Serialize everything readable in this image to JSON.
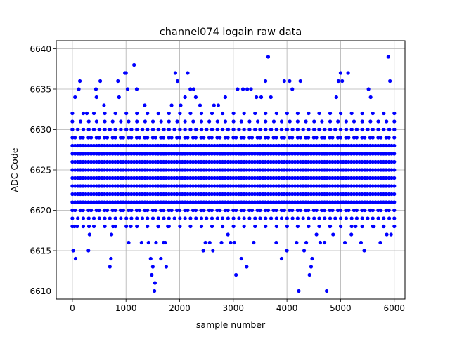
{
  "chart_data": {
    "type": "scatter",
    "title": "channel074 logain raw data",
    "xlabel": "sample number",
    "ylabel": "ADC Code",
    "xlim": [
      -300,
      6200
    ],
    "ylim": [
      6609,
      6641
    ],
    "xticks": [
      0,
      1000,
      2000,
      3000,
      4000,
      5000,
      6000
    ],
    "yticks": [
      6610,
      6615,
      6620,
      6625,
      6630,
      6635,
      6640
    ],
    "xtick_labels": [
      "0",
      "1000",
      "2000",
      "3000",
      "4000",
      "5000",
      "6000"
    ],
    "ytick_labels": [
      "6610",
      "6615",
      "6620",
      "6625",
      "6630",
      "6635",
      "6640"
    ],
    "grid": true,
    "marker_color": "#0000ff",
    "sample_count": 6000,
    "value_range": [
      6610,
      6639
    ],
    "dense_band": [
      6620,
      6629
    ],
    "series": [
      {
        "points": [
          [
            15,
            6615
          ],
          [
            40,
            6618
          ],
          [
            50,
            6634
          ],
          [
            60,
            6614
          ],
          [
            90,
            6618
          ],
          [
            120,
            6635
          ],
          [
            140,
            6636
          ],
          [
            270,
            6632
          ],
          [
            300,
            6615
          ],
          [
            310,
            6618
          ],
          [
            320,
            6617
          ],
          [
            440,
            6635
          ],
          [
            450,
            6634
          ],
          [
            520,
            6636
          ],
          [
            590,
            6633
          ],
          [
            700,
            6613
          ],
          [
            720,
            6614
          ],
          [
            730,
            6617
          ],
          [
            760,
            6618
          ],
          [
            850,
            6636
          ],
          [
            870,
            6634
          ],
          [
            980,
            6637
          ],
          [
            1000,
            6637
          ],
          [
            1030,
            6635
          ],
          [
            1050,
            6616
          ],
          [
            1090,
            6618
          ],
          [
            1150,
            6638
          ],
          [
            1200,
            6635
          ],
          [
            1290,
            6616
          ],
          [
            1350,
            6633
          ],
          [
            1420,
            6616
          ],
          [
            1460,
            6614
          ],
          [
            1480,
            6612
          ],
          [
            1500,
            6613
          ],
          [
            1530,
            6610
          ],
          [
            1540,
            6611
          ],
          [
            1560,
            6616
          ],
          [
            1600,
            6618
          ],
          [
            1650,
            6614
          ],
          [
            1700,
            6616
          ],
          [
            1730,
            6616
          ],
          [
            1750,
            6613
          ],
          [
            1780,
            6618
          ],
          [
            1850,
            6633
          ],
          [
            1920,
            6637
          ],
          [
            1960,
            6636
          ],
          [
            2020,
            6633
          ],
          [
            2100,
            6634
          ],
          [
            2150,
            6637
          ],
          [
            2200,
            6635
          ],
          [
            2260,
            6635
          ],
          [
            2300,
            6634
          ],
          [
            2380,
            6633
          ],
          [
            2440,
            6615
          ],
          [
            2480,
            6616
          ],
          [
            2560,
            6616
          ],
          [
            2620,
            6615
          ],
          [
            2640,
            6633
          ],
          [
            2720,
            6633
          ],
          [
            2780,
            6616
          ],
          [
            2850,
            6634
          ],
          [
            2900,
            6617
          ],
          [
            2950,
            6616
          ],
          [
            3020,
            6616
          ],
          [
            3050,
            6612
          ],
          [
            3080,
            6635
          ],
          [
            3150,
            6614
          ],
          [
            3180,
            6635
          ],
          [
            3250,
            6613
          ],
          [
            3260,
            6635
          ],
          [
            3330,
            6635
          ],
          [
            3380,
            6616
          ],
          [
            3430,
            6634
          ],
          [
            3520,
            6634
          ],
          [
            3600,
            6636
          ],
          [
            3650,
            6639
          ],
          [
            3700,
            6634
          ],
          [
            3800,
            6616
          ],
          [
            3900,
            6614
          ],
          [
            3950,
            6636
          ],
          [
            4000,
            6615
          ],
          [
            4050,
            6636
          ],
          [
            4100,
            6635
          ],
          [
            4180,
            6616
          ],
          [
            4220,
            6610
          ],
          [
            4250,
            6636
          ],
          [
            4320,
            6615
          ],
          [
            4360,
            6616
          ],
          [
            4420,
            6612
          ],
          [
            4450,
            6613
          ],
          [
            4470,
            6614
          ],
          [
            4550,
            6617
          ],
          [
            4620,
            6616
          ],
          [
            4700,
            6616
          ],
          [
            4740,
            6610
          ],
          [
            4800,
            6618
          ],
          [
            4860,
            6617
          ],
          [
            4920,
            6634
          ],
          [
            4960,
            6636
          ],
          [
            5000,
            6637
          ],
          [
            5030,
            6636
          ],
          [
            5080,
            6616
          ],
          [
            5140,
            6637
          ],
          [
            5200,
            6617
          ],
          [
            5280,
            6618
          ],
          [
            5380,
            6616
          ],
          [
            5440,
            6615
          ],
          [
            5520,
            6635
          ],
          [
            5560,
            6634
          ],
          [
            5620,
            6618
          ],
          [
            5740,
            6616
          ],
          [
            5800,
            6618
          ],
          [
            5860,
            6617
          ],
          [
            5890,
            6639
          ],
          [
            5920,
            6636
          ],
          [
            5940,
            6617
          ]
        ]
      }
    ]
  }
}
